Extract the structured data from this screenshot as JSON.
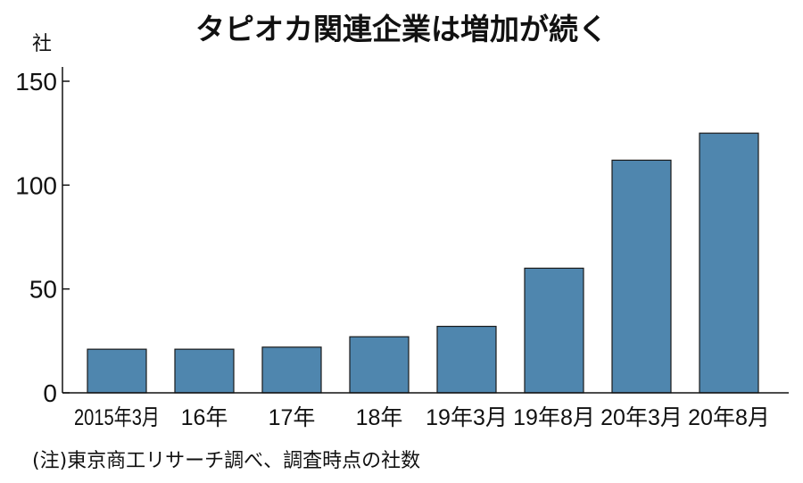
{
  "chart_data": {
    "type": "bar",
    "title": "タピオカ関連企業は増加が続く",
    "unit": "社",
    "categories": [
      "2015年3月",
      "16年",
      "17年",
      "18年",
      "19年3月",
      "19年8月",
      "20年3月",
      "20年8月"
    ],
    "values": [
      21,
      21,
      22,
      27,
      32,
      60,
      112,
      125
    ],
    "ylim": [
      0,
      150
    ],
    "yticks": [
      0,
      50,
      100,
      150
    ],
    "grid": false,
    "bar_color": "#4f86ae",
    "note": "(注)東京商工リサーチ調べ、調査時点の社数"
  }
}
